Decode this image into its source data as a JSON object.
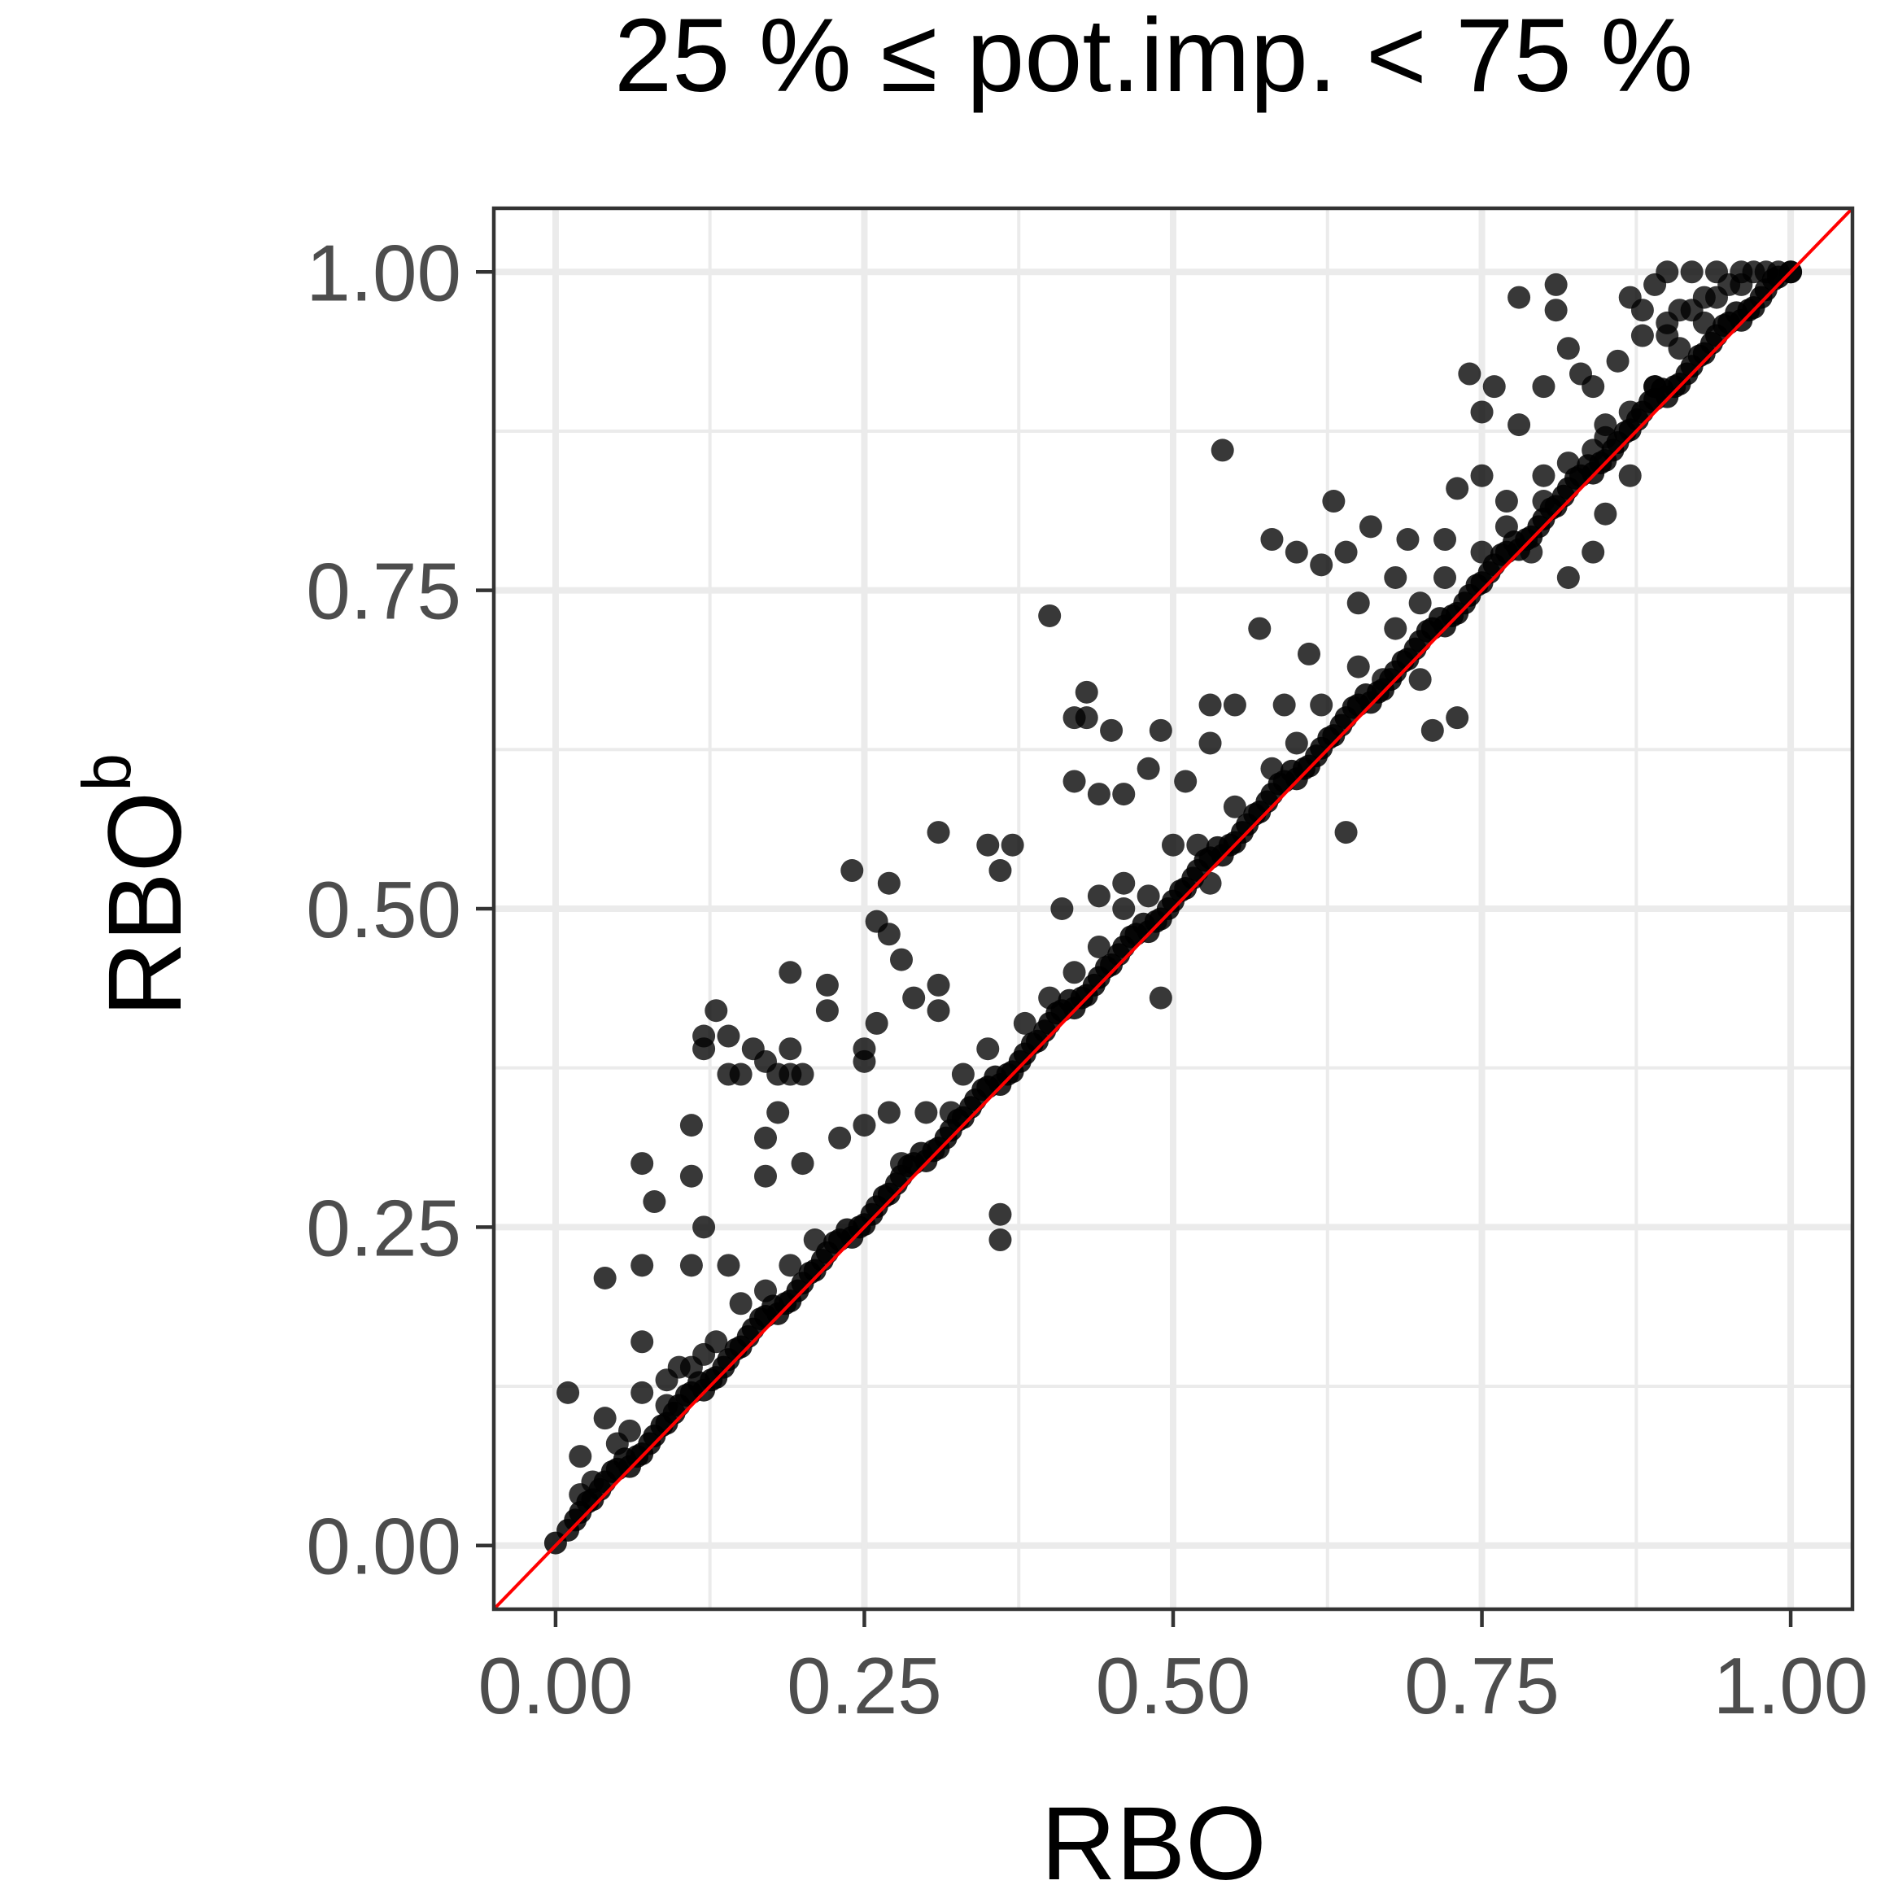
{
  "chart_data": {
    "type": "scatter",
    "title": "25 % ≤ pot.imp. < 75 %",
    "xlabel": "RBO",
    "ylabel_main": "RBO",
    "ylabel_sup": "b",
    "xlim": [
      -0.05,
      1.05
    ],
    "ylim": [
      -0.05,
      1.05
    ],
    "x_ticks": [
      "0.00",
      "0.25",
      "0.50",
      "0.75",
      "1.00"
    ],
    "y_ticks": [
      "0.00",
      "0.25",
      "0.50",
      "0.75",
      "1.00"
    ],
    "grid": true,
    "reference_line": {
      "type": "identity",
      "color": "#ff0000"
    },
    "point_color": "#000000",
    "line_color": "#ff0000",
    "series": [
      {
        "points": [
          [
            0.01,
            0.12
          ],
          [
            0.02,
            0.07
          ],
          [
            0.04,
            0.21
          ],
          [
            0.04,
            0.1
          ],
          [
            0.07,
            0.3
          ],
          [
            0.07,
            0.22
          ],
          [
            0.07,
            0.16
          ],
          [
            0.07,
            0.12
          ],
          [
            0.08,
            0.27
          ],
          [
            0.09,
            0.11
          ],
          [
            0.11,
            0.29
          ],
          [
            0.11,
            0.33
          ],
          [
            0.12,
            0.4
          ],
          [
            0.12,
            0.39
          ],
          [
            0.11,
            0.22
          ],
          [
            0.12,
            0.25
          ],
          [
            0.13,
            0.42
          ],
          [
            0.14,
            0.4
          ],
          [
            0.14,
            0.22
          ],
          [
            0.14,
            0.37
          ],
          [
            0.15,
            0.37
          ],
          [
            0.16,
            0.39
          ],
          [
            0.17,
            0.38
          ],
          [
            0.17,
            0.32
          ],
          [
            0.17,
            0.29
          ],
          [
            0.18,
            0.37
          ],
          [
            0.18,
            0.34
          ],
          [
            0.19,
            0.45
          ],
          [
            0.19,
            0.39
          ],
          [
            0.19,
            0.37
          ],
          [
            0.2,
            0.37
          ],
          [
            0.2,
            0.3
          ],
          [
            0.22,
            0.44
          ],
          [
            0.22,
            0.42
          ],
          [
            0.23,
            0.32
          ],
          [
            0.24,
            0.53
          ],
          [
            0.25,
            0.39
          ],
          [
            0.25,
            0.38
          ],
          [
            0.26,
            0.41
          ],
          [
            0.26,
            0.49
          ],
          [
            0.27,
            0.52
          ],
          [
            0.27,
            0.48
          ],
          [
            0.28,
            0.46
          ],
          [
            0.29,
            0.43
          ],
          [
            0.31,
            0.56
          ],
          [
            0.31,
            0.44
          ],
          [
            0.31,
            0.42
          ],
          [
            0.35,
            0.55
          ],
          [
            0.36,
            0.53
          ],
          [
            0.37,
            0.55
          ],
          [
            0.36,
            0.26
          ],
          [
            0.36,
            0.24
          ],
          [
            0.4,
            0.73
          ],
          [
            0.41,
            0.5
          ],
          [
            0.42,
            0.65
          ],
          [
            0.42,
            0.6
          ],
          [
            0.43,
            0.65
          ],
          [
            0.43,
            0.67
          ],
          [
            0.44,
            0.59
          ],
          [
            0.44,
            0.51
          ],
          [
            0.45,
            0.64
          ],
          [
            0.46,
            0.59
          ],
          [
            0.46,
            0.52
          ],
          [
            0.48,
            0.61
          ],
          [
            0.49,
            0.64
          ],
          [
            0.49,
            0.43
          ],
          [
            0.5,
            0.55
          ],
          [
            0.51,
            0.6
          ],
          [
            0.53,
            0.63
          ],
          [
            0.53,
            0.66
          ],
          [
            0.53,
            0.52
          ],
          [
            0.54,
            0.86
          ],
          [
            0.55,
            0.66
          ],
          [
            0.57,
            0.72
          ],
          [
            0.58,
            0.79
          ],
          [
            0.59,
            0.66
          ],
          [
            0.6,
            0.78
          ],
          [
            0.61,
            0.7
          ],
          [
            0.62,
            0.77
          ],
          [
            0.63,
            0.82
          ],
          [
            0.64,
            0.78
          ],
          [
            0.64,
            0.56
          ],
          [
            0.65,
            0.74
          ],
          [
            0.66,
            0.8
          ],
          [
            0.67,
            0.68
          ],
          [
            0.68,
            0.76
          ],
          [
            0.69,
            0.79
          ],
          [
            0.7,
            0.68
          ],
          [
            0.71,
            0.64
          ],
          [
            0.72,
            0.79
          ],
          [
            0.73,
            0.83
          ],
          [
            0.73,
            0.65
          ],
          [
            0.74,
            0.92
          ],
          [
            0.75,
            0.89
          ],
          [
            0.75,
            0.84
          ],
          [
            0.76,
            0.91
          ],
          [
            0.77,
            0.82
          ],
          [
            0.78,
            0.88
          ],
          [
            0.78,
            0.98
          ],
          [
            0.79,
            0.78
          ],
          [
            0.8,
            0.91
          ],
          [
            0.8,
            0.84
          ],
          [
            0.81,
            0.99
          ],
          [
            0.81,
            0.97
          ],
          [
            0.82,
            0.94
          ],
          [
            0.82,
            0.76
          ],
          [
            0.83,
            0.92
          ],
          [
            0.84,
            0.91
          ],
          [
            0.84,
            0.86
          ],
          [
            0.84,
            0.78
          ],
          [
            0.85,
            0.88
          ],
          [
            0.85,
            0.81
          ],
          [
            0.86,
            0.93
          ],
          [
            0.87,
            0.98
          ],
          [
            0.87,
            0.84
          ],
          [
            0.88,
            0.97
          ],
          [
            0.88,
            0.95
          ],
          [
            0.89,
            0.99
          ],
          [
            0.89,
            0.91
          ],
          [
            0.9,
            0.96
          ],
          [
            0.9,
            1.0
          ],
          [
            0.91,
            0.97
          ],
          [
            0.91,
            0.94
          ],
          [
            0.92,
            1.0
          ],
          [
            0.93,
            0.98
          ],
          [
            0.93,
            0.96
          ],
          [
            0.94,
            1.0
          ],
          [
            0.95,
            0.99
          ],
          [
            0.96,
            1.0
          ],
          [
            0.97,
            1.0
          ],
          [
            0.98,
            1.0
          ],
          [
            0.99,
            1.0
          ],
          [
            1.0,
            1.0
          ],
          [
            0.9,
            0.95
          ],
          [
            0.92,
            0.97
          ],
          [
            0.94,
            0.98
          ],
          [
            0.96,
            0.99
          ],
          [
            0.25,
            0.33
          ],
          [
            0.27,
            0.34
          ],
          [
            0.28,
            0.3
          ],
          [
            0.3,
            0.34
          ],
          [
            0.32,
            0.34
          ],
          [
            0.33,
            0.37
          ],
          [
            0.35,
            0.39
          ],
          [
            0.38,
            0.41
          ],
          [
            0.4,
            0.43
          ],
          [
            0.42,
            0.45
          ],
          [
            0.44,
            0.47
          ],
          [
            0.46,
            0.5
          ],
          [
            0.48,
            0.51
          ],
          [
            0.52,
            0.55
          ],
          [
            0.55,
            0.58
          ],
          [
            0.58,
            0.61
          ],
          [
            0.6,
            0.63
          ],
          [
            0.62,
            0.66
          ],
          [
            0.65,
            0.69
          ],
          [
            0.68,
            0.72
          ],
          [
            0.7,
            0.74
          ],
          [
            0.72,
            0.76
          ],
          [
            0.75,
            0.78
          ],
          [
            0.77,
            0.8
          ],
          [
            0.8,
            0.82
          ],
          [
            0.82,
            0.85
          ],
          [
            0.85,
            0.87
          ],
          [
            0.87,
            0.89
          ],
          [
            0.89,
            0.91
          ],
          [
            0.15,
            0.19
          ],
          [
            0.17,
            0.2
          ],
          [
            0.19,
            0.22
          ],
          [
            0.21,
            0.24
          ],
          [
            0.1,
            0.14
          ],
          [
            0.12,
            0.15
          ],
          [
            0.05,
            0.08
          ],
          [
            0.06,
            0.09
          ],
          [
            0.03,
            0.05
          ],
          [
            0.02,
            0.04
          ],
          [
            0.09,
            0.13
          ],
          [
            0.11,
            0.14
          ],
          [
            0.13,
            0.16
          ]
        ]
      },
      {
        "diagonal_band": [
          0.0,
          0.02,
          0.04,
          0.06,
          0.08,
          0.1,
          0.12,
          0.14,
          0.16,
          0.18,
          0.2,
          0.22,
          0.24,
          0.26,
          0.28,
          0.3,
          0.32,
          0.34,
          0.36,
          0.38,
          0.4,
          0.42,
          0.44,
          0.46,
          0.48,
          0.5,
          0.52,
          0.54,
          0.56,
          0.58,
          0.6,
          0.62,
          0.64,
          0.66,
          0.68,
          0.7,
          0.72,
          0.74,
          0.76,
          0.78,
          0.8,
          0.82,
          0.84,
          0.86,
          0.88,
          0.9,
          0.92,
          0.94,
          0.96,
          0.98,
          1.0,
          0.01,
          0.03,
          0.05,
          0.07,
          0.09,
          0.11,
          0.13,
          0.15,
          0.17,
          0.19,
          0.21,
          0.23,
          0.25,
          0.27,
          0.29,
          0.31,
          0.33,
          0.35,
          0.37,
          0.39,
          0.41,
          0.43,
          0.45,
          0.47,
          0.49,
          0.51,
          0.53,
          0.55,
          0.57,
          0.59,
          0.61,
          0.63,
          0.65,
          0.67,
          0.69,
          0.71,
          0.73,
          0.75,
          0.77,
          0.79,
          0.81,
          0.83,
          0.85,
          0.87,
          0.89,
          0.91,
          0.93,
          0.95,
          0.97,
          0.99
        ]
      }
    ]
  }
}
